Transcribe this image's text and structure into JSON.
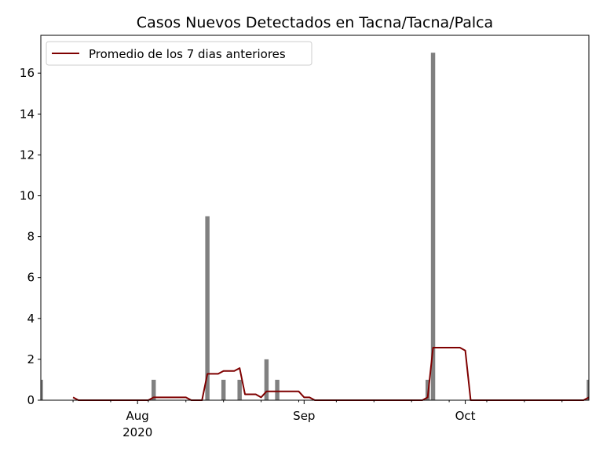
{
  "chart_data": {
    "type": "bar",
    "title": "Casos Nuevos Detectados en Tacna/Tacna/Palca",
    "xlabel": "",
    "ylabel": "",
    "x_range": [
      "2020-07-14",
      "2020-10-24"
    ],
    "ylim": [
      0,
      17.85
    ],
    "y_ticks": [
      0,
      2,
      4,
      6,
      8,
      10,
      12,
      14,
      16
    ],
    "y_tick_labels": [
      "0",
      "2",
      "4",
      "6",
      "8",
      "10",
      "12",
      "14",
      "16"
    ],
    "x_ticks": [
      {
        "date": "2020-08-01",
        "label": "Aug",
        "sublabel": "2020"
      },
      {
        "date": "2020-09-01",
        "label": "Sep",
        "sublabel": ""
      },
      {
        "date": "2020-10-01",
        "label": "Oct",
        "sublabel": ""
      }
    ],
    "grid": false,
    "legend_position": "top-left",
    "bars": {
      "color": "#808080",
      "points": [
        {
          "date": "2020-07-14",
          "value": 1
        },
        {
          "date": "2020-08-04",
          "value": 1
        },
        {
          "date": "2020-08-14",
          "value": 9
        },
        {
          "date": "2020-08-17",
          "value": 1
        },
        {
          "date": "2020-08-20",
          "value": 1
        },
        {
          "date": "2020-08-25",
          "value": 2
        },
        {
          "date": "2020-08-27",
          "value": 1
        },
        {
          "date": "2020-09-24",
          "value": 1
        },
        {
          "date": "2020-09-25",
          "value": 17
        },
        {
          "date": "2020-10-24",
          "value": 1
        }
      ]
    },
    "series": [
      {
        "name": "Promedio de los 7 dias anteriores",
        "color": "#7f0000",
        "points": [
          {
            "date": "2020-07-20",
            "value": 0.14
          },
          {
            "date": "2020-07-21",
            "value": 0
          },
          {
            "date": "2020-08-03",
            "value": 0
          },
          {
            "date": "2020-08-04",
            "value": 0.14
          },
          {
            "date": "2020-08-10",
            "value": 0.14
          },
          {
            "date": "2020-08-11",
            "value": 0
          },
          {
            "date": "2020-08-13",
            "value": 0
          },
          {
            "date": "2020-08-14",
            "value": 1.29
          },
          {
            "date": "2020-08-16",
            "value": 1.29
          },
          {
            "date": "2020-08-17",
            "value": 1.43
          },
          {
            "date": "2020-08-19",
            "value": 1.43
          },
          {
            "date": "2020-08-20",
            "value": 1.57
          },
          {
            "date": "2020-08-21",
            "value": 0.29
          },
          {
            "date": "2020-08-23",
            "value": 0.29
          },
          {
            "date": "2020-08-24",
            "value": 0.14
          },
          {
            "date": "2020-08-25",
            "value": 0.43
          },
          {
            "date": "2020-08-31",
            "value": 0.43
          },
          {
            "date": "2020-09-01",
            "value": 0.14
          },
          {
            "date": "2020-09-02",
            "value": 0.14
          },
          {
            "date": "2020-09-03",
            "value": 0
          },
          {
            "date": "2020-09-23",
            "value": 0
          },
          {
            "date": "2020-09-24",
            "value": 0.14
          },
          {
            "date": "2020-09-25",
            "value": 2.57
          },
          {
            "date": "2020-09-30",
            "value": 2.57
          },
          {
            "date": "2020-10-01",
            "value": 2.43
          },
          {
            "date": "2020-10-02",
            "value": 0
          },
          {
            "date": "2020-10-23",
            "value": 0
          },
          {
            "date": "2020-10-24",
            "value": 0.14
          }
        ]
      }
    ]
  }
}
